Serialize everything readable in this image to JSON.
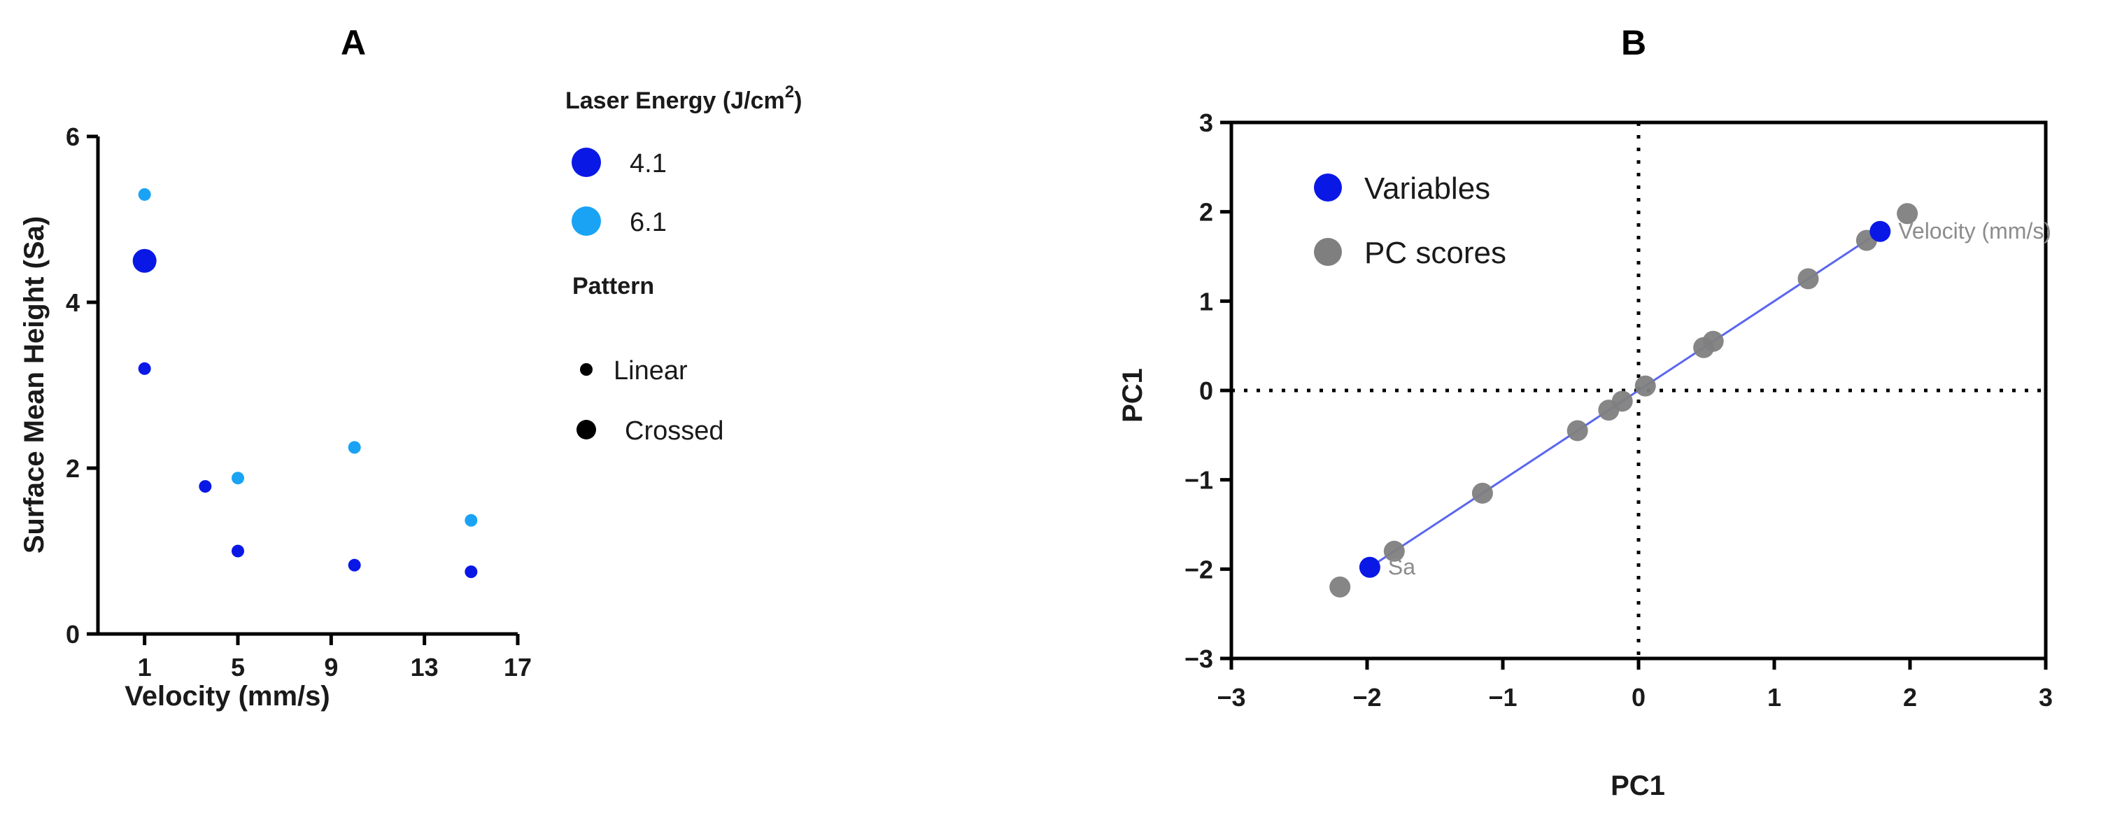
{
  "colors": {
    "dark_blue": "#0a18e6",
    "light_blue": "#1aa3f5",
    "grey": "#7f7f7f",
    "fit_line": "#5a66f0",
    "axis": "#000000"
  },
  "chart_data": [
    {
      "id": "A",
      "type": "scatter",
      "title": "A",
      "xlabel": "Velocity (mm/s)",
      "ylabel": "Surface Mean Height (Sa)",
      "xlim": [
        -1,
        17
      ],
      "ylim": [
        0,
        6
      ],
      "xticks": [
        1,
        5,
        9,
        13,
        17
      ],
      "yticks": [
        0,
        2,
        4,
        6
      ],
      "grid": false,
      "legend": {
        "energy_title": "Laser Energy (J/cm",
        "energy_title_sup": "2",
        "energy_title_close": ")",
        "energy_items": [
          {
            "label": "4.1",
            "color": "#0a18e6"
          },
          {
            "label": "6.1",
            "color": "#1aa3f5"
          }
        ],
        "pattern_title": "Pattern",
        "pattern_items": [
          {
            "label": "Linear",
            "size": "small"
          },
          {
            "label": "Crossed",
            "size": "large"
          }
        ]
      },
      "series": [
        {
          "name": "4.1 Linear",
          "energy": "4.1",
          "pattern": "Linear",
          "points": [
            {
              "x": 1,
              "y": 3.2
            },
            {
              "x": 5,
              "y": 1.0
            },
            {
              "x": 10,
              "y": 0.83
            },
            {
              "x": 15,
              "y": 0.75
            }
          ]
        },
        {
          "name": "4.1 Crossed",
          "energy": "4.1",
          "pattern": "Crossed",
          "points": [
            {
              "x": 1,
              "y": 4.5
            }
          ]
        },
        {
          "name": "6.1 Linear",
          "energy": "6.1",
          "pattern": "Linear",
          "points": [
            {
              "x": 1,
              "y": 5.3
            },
            {
              "x": 5,
              "y": 1.88
            },
            {
              "x": 10,
              "y": 2.25
            },
            {
              "x": 15,
              "y": 1.37
            }
          ]
        },
        {
          "name": "unlabeled point",
          "energy": "4.1",
          "pattern": "Linear",
          "points": [
            {
              "x": 3.6,
              "y": 1.78
            }
          ]
        }
      ]
    },
    {
      "id": "B",
      "type": "scatter",
      "title": "B",
      "xlabel": "PC1",
      "ylabel": "PC1",
      "xlim": [
        -3,
        3
      ],
      "ylim": [
        -3,
        3
      ],
      "xticks": [
        -3,
        -2,
        -1,
        0,
        1,
        2,
        3
      ],
      "yticks": [
        -3,
        -2,
        -1,
        0,
        1,
        2,
        3
      ],
      "xtick_labels": [
        "−3",
        "−2",
        "−1",
        "0",
        "1",
        "2",
        "3"
      ],
      "ytick_labels": [
        "−3",
        "−2",
        "−1",
        "0",
        "1",
        "2",
        "3"
      ],
      "grid": false,
      "reference_lines": {
        "x": 0,
        "y": 0,
        "style": "dotted"
      },
      "legend": {
        "items": [
          {
            "label": "Variables",
            "color": "#0a18e6"
          },
          {
            "label": "PC scores",
            "color": "#7f7f7f"
          }
        ]
      },
      "pc_scores": [
        {
          "x": -2.2,
          "y": -2.2
        },
        {
          "x": -1.8,
          "y": -1.8
        },
        {
          "x": -1.15,
          "y": -1.15
        },
        {
          "x": -0.45,
          "y": -0.45
        },
        {
          "x": -0.22,
          "y": -0.22
        },
        {
          "x": -0.12,
          "y": -0.12
        },
        {
          "x": 0.05,
          "y": 0.05
        },
        {
          "x": 0.48,
          "y": 0.48
        },
        {
          "x": 0.55,
          "y": 0.55
        },
        {
          "x": 1.25,
          "y": 1.25
        },
        {
          "x": 1.68,
          "y": 1.68
        },
        {
          "x": 1.98,
          "y": 1.98
        }
      ],
      "variables": [
        {
          "label": "Sa",
          "x": -1.98,
          "y": -1.98
        },
        {
          "label": "Velocity (mm/s)",
          "x": 1.78,
          "y": 1.78
        }
      ],
      "fit_line": {
        "x0": -1.98,
        "y0": -1.98,
        "x1": 1.78,
        "y1": 1.78
      }
    }
  ]
}
